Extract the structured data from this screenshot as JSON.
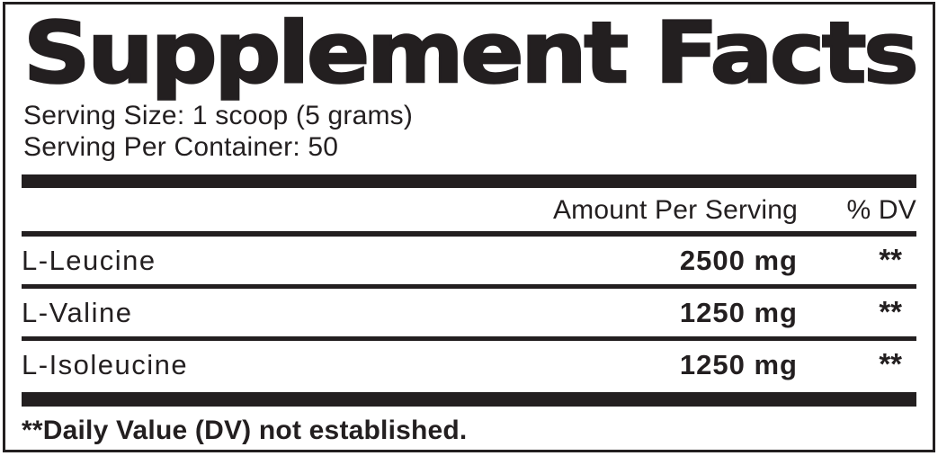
{
  "label": {
    "title": "Supplement Facts",
    "serving_size": "Serving Size: 1 scoop (5 grams)",
    "servings_per_container": "Serving Per Container: 50",
    "header": {
      "amount": "Amount Per Serving",
      "dv": "% DV"
    },
    "rows": [
      {
        "name": "L-Leucine",
        "amount": "2500 mg",
        "dv": "**"
      },
      {
        "name": "L-Valine",
        "amount": "1250 mg",
        "dv": "**"
      },
      {
        "name": "L-Isoleucine",
        "amount": "1250 mg",
        "dv": "**"
      }
    ],
    "footnote": "**Daily Value (DV) not established.",
    "colors": {
      "ink": "#231f20",
      "background": "#ffffff"
    }
  }
}
